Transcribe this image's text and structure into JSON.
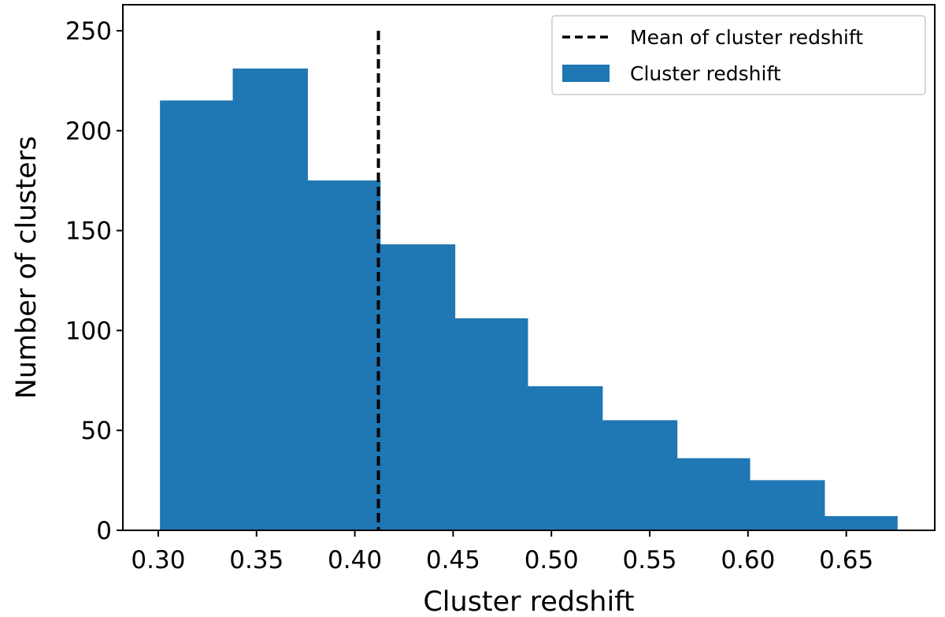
{
  "chart_data": {
    "type": "bar",
    "subtype": "histogram",
    "xlabel": "Cluster redshift",
    "ylabel": "Number of clusters",
    "xlim": [
      0.282,
      0.695
    ],
    "ylim": [
      0,
      250
    ],
    "xticks": [
      {
        "value": 0.3,
        "label": "0.30"
      },
      {
        "value": 0.35,
        "label": "0.35"
      },
      {
        "value": 0.4,
        "label": "0.40"
      },
      {
        "value": 0.45,
        "label": "0.45"
      },
      {
        "value": 0.5,
        "label": "0.50"
      },
      {
        "value": 0.55,
        "label": "0.55"
      },
      {
        "value": 0.6,
        "label": "0.60"
      },
      {
        "value": 0.65,
        "label": "0.65"
      }
    ],
    "yticks": [
      {
        "value": 0,
        "label": "0"
      },
      {
        "value": 50,
        "label": "50"
      },
      {
        "value": 100,
        "label": "100"
      },
      {
        "value": 150,
        "label": "150"
      },
      {
        "value": 200,
        "label": "200"
      },
      {
        "value": 250,
        "label": "250"
      }
    ],
    "grid": false,
    "legend_position": "top-right",
    "series": [
      {
        "name": "Cluster redshift",
        "kind": "histogram",
        "color": "#1f77b4",
        "bins": [
          {
            "x0": 0.301,
            "x1": 0.338,
            "count": 215
          },
          {
            "x0": 0.338,
            "x1": 0.376,
            "count": 231
          },
          {
            "x0": 0.376,
            "x1": 0.413,
            "count": 175
          },
          {
            "x0": 0.413,
            "x1": 0.451,
            "count": 143
          },
          {
            "x0": 0.451,
            "x1": 0.488,
            "count": 106
          },
          {
            "x0": 0.488,
            "x1": 0.526,
            "count": 72
          },
          {
            "x0": 0.526,
            "x1": 0.564,
            "count": 55
          },
          {
            "x0": 0.564,
            "x1": 0.601,
            "count": 36
          },
          {
            "x0": 0.601,
            "x1": 0.639,
            "count": 25
          },
          {
            "x0": 0.639,
            "x1": 0.676,
            "count": 7
          }
        ]
      },
      {
        "name": "Mean of cluster redshift",
        "kind": "vline",
        "color": "#000000",
        "linestyle": "dashed",
        "x": 0.412,
        "y_range": [
          0,
          250
        ]
      }
    ],
    "legend_order": [
      "Mean of cluster redshift",
      "Cluster redshift"
    ]
  }
}
